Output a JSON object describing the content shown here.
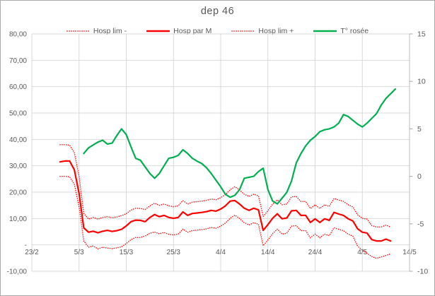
{
  "window": {
    "background": "#FFFFFF",
    "border_color": "#ABABAB"
  },
  "chart_data": {
    "type": "line",
    "title": "dep 46",
    "legend_position": "top",
    "grid": true,
    "colors": {
      "red_series": "#FF0000",
      "green_series": "#00B050",
      "gridline": "#D9D9D9",
      "axis_line": "#BFBFBF",
      "tick_mark": "#A6A6A6",
      "axis_text": "#595959",
      "title_text": "#595959"
    },
    "x_axis": {
      "tick_labels": [
        "23/2",
        "5/3",
        "15/3",
        "25/3",
        "4/4",
        "14/4",
        "24/4",
        "4/5",
        "14/5"
      ],
      "days_per_tick": 10,
      "total_days": 80
    },
    "y_left": {
      "min": -10,
      "max": 80,
      "step": 10,
      "tick_labels": [
        "80,00",
        "70,00",
        "60,00",
        "50,00",
        "40,00",
        "30,00",
        "20,00",
        "10,00",
        "-",
        "-10,00"
      ]
    },
    "y_right": {
      "min": -10,
      "max": 15,
      "step": 5,
      "tick_labels": [
        "15",
        "10",
        "5",
        "0",
        "-5",
        "-10"
      ]
    },
    "series": [
      {
        "id": "hosp-lim-minus",
        "name": "Hosp lim -",
        "color": "#FF0000",
        "style": "dotted",
        "axis": "left",
        "start_date": "1/3",
        "start_day": 6,
        "values": [
          26,
          26,
          25.8,
          23,
          14.5,
          1.5,
          -0.9,
          -0.4,
          -1.5,
          -0.9,
          -1.2,
          -1.4,
          -1.1,
          -0.7,
          0.5,
          2.0,
          2.8,
          2.8,
          3.4,
          4.4,
          4.9,
          4.2,
          4.7,
          4.0,
          3.8,
          4.1,
          6.0,
          4.8,
          5.4,
          5.6,
          5.8,
          6.1,
          6.6,
          6.3,
          7.1,
          8.3,
          10.1,
          11.3,
          10.0,
          8.4,
          7.6,
          8.4,
          7.8,
          -0.3,
          1.9,
          4.3,
          6.0,
          4.1,
          4.4,
          7.1,
          7.3,
          5.4,
          5.4,
          2.7,
          4.1,
          2.7,
          4.1,
          3.5,
          6.5,
          5.9,
          5.4,
          4.1,
          3.3,
          -0.5,
          -2.0,
          -3.2,
          -4.4,
          -5.1,
          -4.6,
          -4.0,
          -3.4
        ]
      },
      {
        "id": "hosp-par-m",
        "name": "Hosp par M",
        "color": "#FF0000",
        "style": "solid",
        "axis": "left",
        "start_date": "1/3",
        "start_day": 6,
        "values": [
          31.5,
          31.8,
          31.8,
          28.5,
          19.5,
          6.5,
          4.8,
          5.2,
          4.6,
          5.2,
          5.5,
          5.1,
          5.4,
          5.9,
          7.2,
          8.8,
          9.4,
          9.3,
          8.8,
          10.4,
          11.5,
          10.7,
          11.2,
          10.4,
          10.1,
          10.4,
          12.5,
          11.2,
          11.9,
          12.1,
          12.3,
          12.6,
          13.1,
          12.8,
          13.6,
          14.8,
          16.6,
          16.8,
          15.5,
          13.9,
          13.1,
          13.9,
          13.3,
          5.5,
          7.7,
          10.1,
          11.8,
          9.9,
          10.2,
          12.9,
          13.1,
          11.2,
          11.2,
          8.5,
          9.9,
          8.5,
          9.9,
          9.3,
          12.3,
          11.7,
          11.2,
          9.9,
          9.1,
          6.1,
          4.8,
          4.5,
          2.0,
          1.5,
          1.5,
          2.2,
          1.5
        ]
      },
      {
        "id": "hosp-lim-plus",
        "name": "Hosp lim +",
        "color": "#FF0000",
        "style": "dotted",
        "axis": "left",
        "start_date": "1/3",
        "start_day": 6,
        "values": [
          38,
          38,
          37.8,
          35,
          26,
          12,
          9.8,
          10.4,
          9.8,
          10.4,
          10.7,
          10.3,
          10.6,
          11.1,
          11.8,
          13.2,
          13.9,
          13.8,
          13.4,
          14.8,
          15.8,
          15.0,
          15.5,
          14.8,
          14.5,
          14.8,
          16.8,
          15.5,
          16.2,
          16.4,
          16.6,
          16.9,
          17.4,
          17.1,
          17.9,
          19.1,
          20.9,
          22.1,
          20.8,
          19.2,
          18.4,
          19.2,
          18.6,
          10.8,
          13.0,
          15.4,
          17.1,
          15.2,
          15.5,
          18.2,
          18.4,
          16.5,
          16.5,
          13.8,
          15.2,
          13.8,
          15.2,
          14.6,
          17.6,
          17.0,
          16.5,
          15.2,
          14.4,
          11.4,
          10.1,
          9.8,
          7.3,
          6.8,
          6.8,
          7.5,
          6.8
        ]
      },
      {
        "id": "t-rosee",
        "name": "T° rosée",
        "color": "#00B050",
        "style": "solid",
        "axis": "right",
        "start_date": "6/3",
        "start_day": 11,
        "values": [
          2.4,
          3.0,
          3.3,
          3.6,
          3.8,
          3.4,
          3.5,
          4.3,
          5.0,
          4.4,
          3.1,
          1.9,
          1.7,
          1.0,
          0.3,
          -0.2,
          0.3,
          1.1,
          1.9,
          2.0,
          2.2,
          2.8,
          2.4,
          1.9,
          1.6,
          1.35,
          0.9,
          0.3,
          -0.4,
          -1.1,
          -1.9,
          -2.2,
          -2.0,
          -1.4,
          -0.2,
          -0.1,
          0.0,
          0.5,
          0.85,
          -1.4,
          -2.6,
          -2.9,
          -2.3,
          -1.7,
          -0.5,
          1.4,
          2.4,
          3.2,
          3.8,
          4.2,
          4.7,
          4.9,
          5.0,
          5.2,
          5.6,
          6.5,
          6.3,
          5.9,
          5.5,
          5.2,
          5.6,
          6.1,
          6.6,
          7.5,
          8.2,
          8.7,
          9.2
        ]
      }
    ]
  }
}
